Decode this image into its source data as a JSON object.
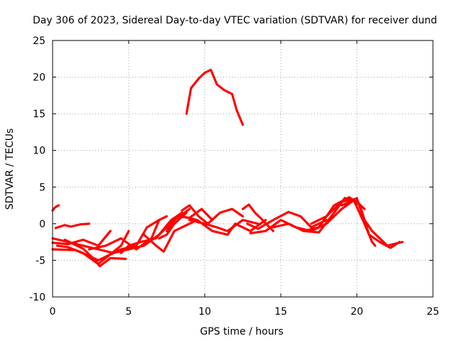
{
  "chart_data": {
    "type": "line",
    "title": "Day 306 of 2023, Sidereal Day-to-day VTEC variation (SDTVAR) for receiver dund",
    "xlabel": "GPS time / hours",
    "ylabel": "SDTVAR / TECUs",
    "xlim": [
      0,
      25
    ],
    "ylim": [
      -10,
      25
    ],
    "xticks": [
      0,
      5,
      10,
      15,
      20,
      25
    ],
    "yticks": [
      -10,
      -5,
      0,
      5,
      10,
      15,
      20,
      25
    ],
    "grid": true,
    "color": "#ff0000",
    "series": [
      {
        "name": "arc-1",
        "x": [
          0.0,
          0.15,
          0.3,
          0.4
        ],
        "y": [
          1.8,
          2.2,
          2.4,
          2.5
        ]
      },
      {
        "name": "arc-2",
        "x": [
          0.2,
          0.8,
          1.2,
          1.8,
          2.4
        ],
        "y": [
          -0.6,
          -0.2,
          -0.4,
          -0.1,
          0.0
        ]
      },
      {
        "name": "arc-3",
        "x": [
          0.0,
          1.0,
          2.0,
          3.0,
          4.0,
          5.0
        ],
        "y": [
          -2.0,
          -2.5,
          -3.0,
          -3.5,
          -4.0,
          -3.5
        ]
      },
      {
        "name": "arc-4",
        "x": [
          0.0,
          1.0,
          2.0,
          3.0,
          3.8
        ],
        "y": [
          -2.6,
          -2.8,
          -2.2,
          -3.0,
          -1.0
        ]
      },
      {
        "name": "arc-5",
        "x": [
          0.3,
          1.0,
          2.0,
          3.0,
          4.5,
          5.0
        ],
        "y": [
          -3.0,
          -3.2,
          -4.0,
          -5.5,
          -3.0,
          -1.0
        ]
      },
      {
        "name": "arc-6",
        "x": [
          0.0,
          1.5,
          2.5,
          3.0,
          4.2
        ],
        "y": [
          -3.5,
          -3.6,
          -4.5,
          -5.0,
          -3.8
        ]
      },
      {
        "name": "arc-7",
        "x": [
          0.8,
          2.0,
          2.8,
          3.1,
          3.8,
          4.8
        ],
        "y": [
          -2.2,
          -3.4,
          -5.0,
          -5.8,
          -4.7,
          -4.8
        ]
      },
      {
        "name": "arc-8",
        "x": [
          2.4,
          3.5,
          4.5,
          5.5,
          6.5,
          7.0
        ],
        "y": [
          -3.5,
          -3.0,
          -2.0,
          -3.5,
          -2.0,
          0.5
        ]
      },
      {
        "name": "arc-9",
        "x": [
          3.5,
          4.5,
          5.5,
          6.2,
          7.0,
          7.5
        ],
        "y": [
          -4.5,
          -3.5,
          -3.0,
          -0.5,
          0.5,
          1.0
        ]
      },
      {
        "name": "arc-10",
        "x": [
          4.5,
          5.0,
          5.8,
          6.8,
          7.8,
          8.5
        ],
        "y": [
          -4.0,
          -3.0,
          -2.5,
          -2.0,
          0.5,
          1.5
        ]
      },
      {
        "name": "arc-11",
        "x": [
          5.0,
          6.0,
          7.0,
          8.0,
          9.0
        ],
        "y": [
          -3.5,
          -3.0,
          -1.5,
          0.5,
          2.0
        ]
      },
      {
        "name": "arc-12",
        "x": [
          6.0,
          6.8,
          7.3,
          8.0,
          9.5
        ],
        "y": [
          -1.5,
          -3.0,
          -3.8,
          -1.0,
          0.5
        ]
      },
      {
        "name": "arc-13",
        "x": [
          7.0,
          7.5,
          8.0,
          8.8
        ],
        "y": [
          -2.0,
          -1.5,
          0.0,
          1.5
        ]
      },
      {
        "name": "arc-14",
        "x": [
          7.5,
          8.2,
          9.0,
          9.8,
          10.5
        ],
        "y": [
          -1.0,
          1.0,
          0.8,
          2.0,
          0.5
        ]
      },
      {
        "name": "arc-15",
        "x": [
          8.5,
          9.0,
          9.6,
          10.2,
          11.0,
          11.8,
          12.5
        ],
        "y": [
          1.8,
          2.5,
          1.0,
          0.0,
          1.5,
          2.0,
          1.0
        ]
      },
      {
        "name": "arc-16",
        "x": [
          9.0,
          10.0,
          10.8,
          11.5,
          12.5,
          13.5
        ],
        "y": [
          0.5,
          0.0,
          -0.5,
          -1.0,
          0.5,
          0.0
        ]
      },
      {
        "name": "arc-17",
        "x": [
          8.5,
          9.5,
          10.5,
          11.5,
          12.0,
          13.0,
          14.0
        ],
        "y": [
          1.0,
          0.5,
          -1.0,
          -1.5,
          0.0,
          -1.0,
          0.5
        ]
      },
      {
        "name": "arc-18",
        "x": [
          8.8,
          9.1,
          9.6,
          10.0,
          10.4,
          10.8,
          11.3,
          11.8,
          12.1,
          12.5
        ],
        "y": [
          15.0,
          18.5,
          19.8,
          20.6,
          21.0,
          19.0,
          18.2,
          17.7,
          15.5,
          13.5
        ]
      },
      {
        "name": "arc-19",
        "x": [
          12.5,
          12.9,
          13.3,
          13.8,
          14.5
        ],
        "y": [
          2.0,
          2.6,
          1.5,
          0.5,
          -1.0
        ]
      },
      {
        "name": "arc-20",
        "x": [
          12.8,
          13.5,
          14.5,
          15.5,
          16.3,
          17.0,
          18.0
        ],
        "y": [
          0.0,
          -0.7,
          0.5,
          1.6,
          1.0,
          -0.5,
          0.5
        ]
      },
      {
        "name": "arc-21",
        "x": [
          13.0,
          14.0,
          15.0,
          16.0,
          17.0,
          18.0,
          19.0,
          20.0
        ],
        "y": [
          -1.3,
          -1.0,
          0.5,
          -0.5,
          -1.0,
          0.0,
          2.0,
          3.5
        ]
      },
      {
        "name": "arc-22",
        "x": [
          14.5,
          15.5,
          16.5,
          17.5,
          18.5,
          19.2,
          20.0,
          20.5
        ],
        "y": [
          -0.5,
          0.0,
          -1.0,
          -1.2,
          1.5,
          3.5,
          3.0,
          2.0
        ]
      },
      {
        "name": "arc-23",
        "x": [
          16.5,
          17.5,
          18.5,
          19.5,
          20.2,
          20.8,
          21.5,
          22.2,
          22.8
        ],
        "y": [
          -1.0,
          -0.5,
          2.5,
          3.6,
          2.5,
          -1.5,
          -2.5,
          -3.3,
          -2.5
        ]
      },
      {
        "name": "arc-24",
        "x": [
          17.0,
          18.0,
          19.0,
          20.0,
          20.5,
          21.0,
          22.0,
          23.0
        ],
        "y": [
          0.0,
          1.0,
          3.0,
          3.4,
          0.5,
          -1.0,
          -3.0,
          -2.5
        ]
      },
      {
        "name": "arc-25",
        "x": [
          19.0,
          19.8,
          20.5,
          21.0,
          21.2
        ],
        "y": [
          2.5,
          3.2,
          0.0,
          -2.5,
          -3.0
        ]
      }
    ]
  }
}
